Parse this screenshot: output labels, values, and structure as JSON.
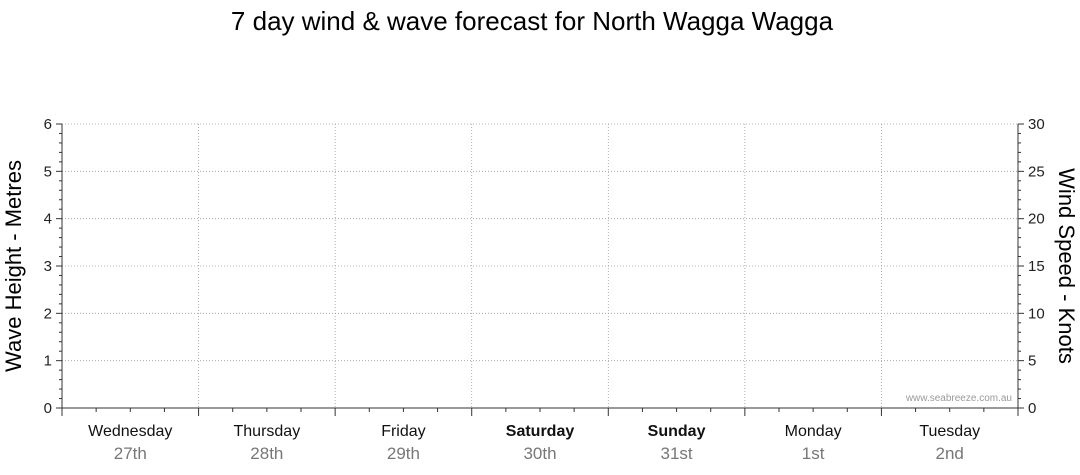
{
  "chart_data": {
    "type": "line",
    "title": "7 day wind & wave forecast for North Wagga Wagga",
    "ylabel_left": "Wave Height - Metres",
    "ylabel_right": "Wind Speed - Knots",
    "ylim_left": [
      0,
      6
    ],
    "ylim_right": [
      0,
      30
    ],
    "yticks_left": [
      "0",
      "1",
      "2",
      "3",
      "4",
      "5",
      "6"
    ],
    "yticks_right": [
      "0",
      "5",
      "10",
      "15",
      "20",
      "25",
      "30"
    ],
    "grid": true,
    "days": [
      {
        "day": "Wednesday",
        "date": "27th",
        "bold": false
      },
      {
        "day": "Thursday",
        "date": "28th",
        "bold": false
      },
      {
        "day": "Friday",
        "date": "29th",
        "bold": false
      },
      {
        "day": "Saturday",
        "date": "30th",
        "bold": true
      },
      {
        "day": "Sunday",
        "date": "31st",
        "bold": true
      },
      {
        "day": "Monday",
        "date": "1st",
        "bold": false
      },
      {
        "day": "Tuesday",
        "date": "2nd",
        "bold": false
      }
    ],
    "series": [],
    "watermark": "www.seabreeze.com.au"
  }
}
